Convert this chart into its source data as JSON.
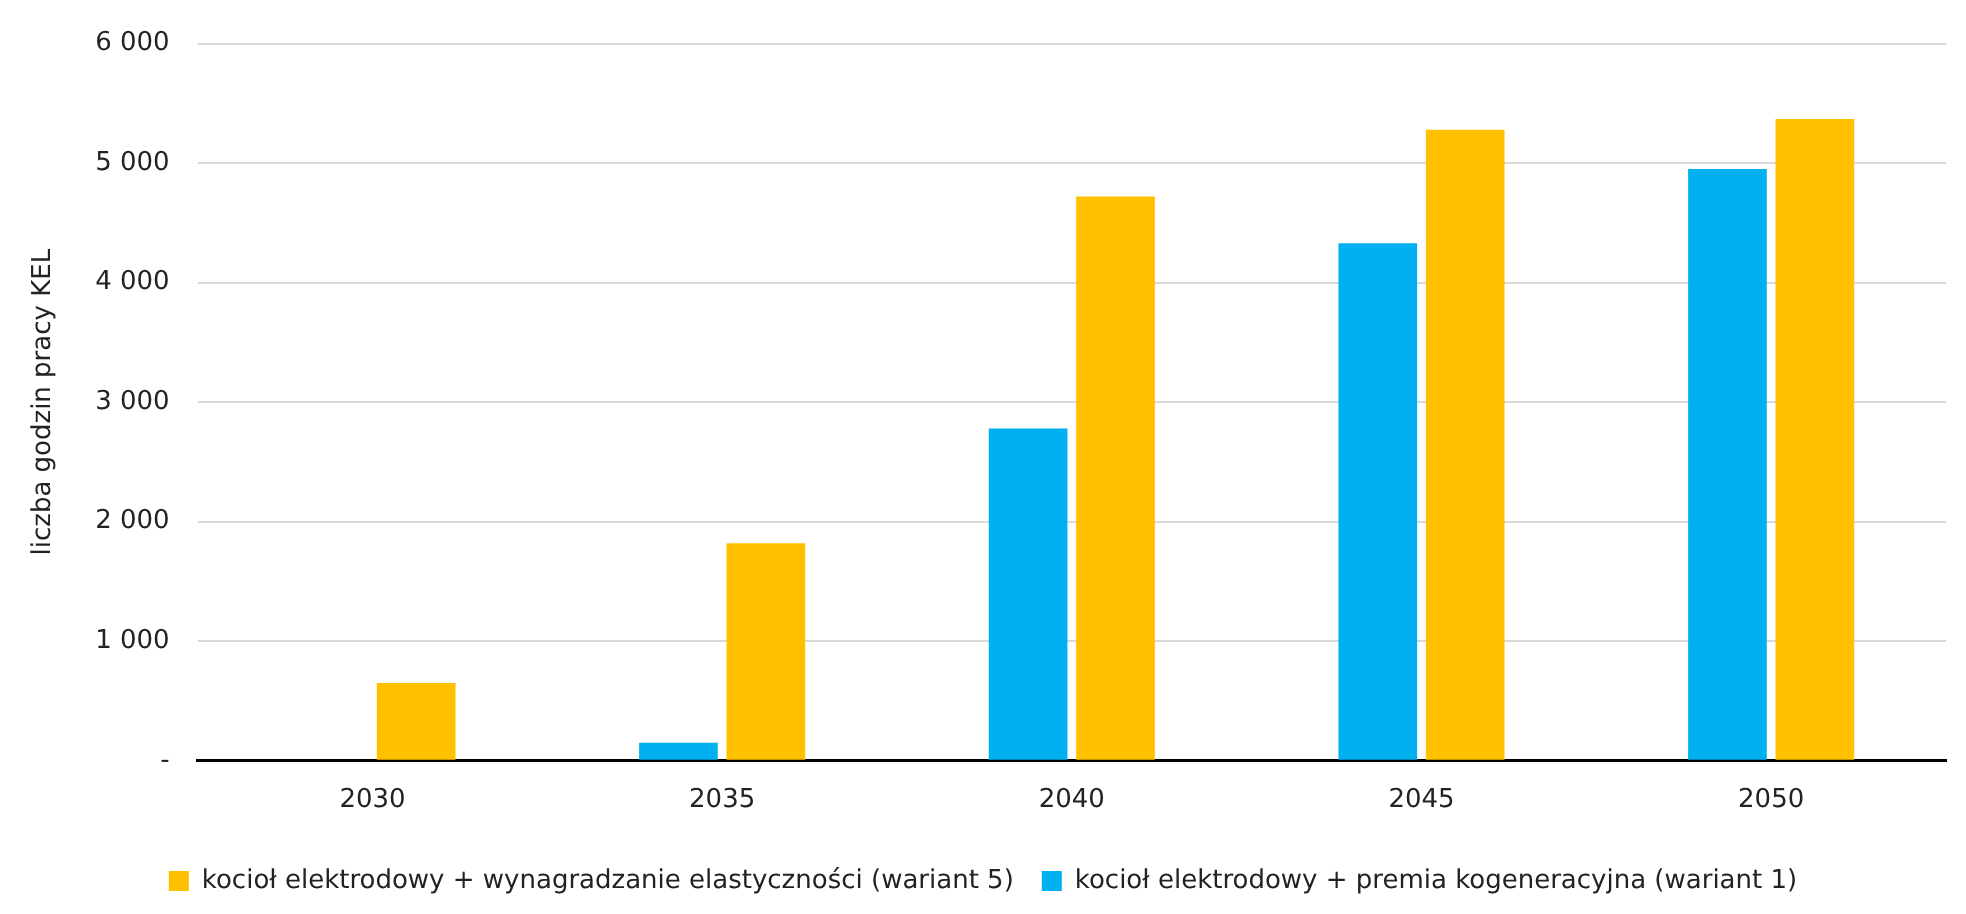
{
  "chart_data": {
    "type": "bar",
    "ylabel": "liczba godzin pracy KEL",
    "categories": [
      "2030",
      "2035",
      "2040",
      "2045",
      "2050"
    ],
    "series": [
      {
        "name": "kocioł elektrodowy + premia kogeneracyjna (wariant 1)",
        "color": "#00b0f0",
        "values": [
          0,
          150,
          2780,
          4330,
          4950
        ]
      },
      {
        "name": "kocioł elektrodowy + wynagradzanie elastyczności (wariant 5)",
        "color": "#ffc000",
        "values": [
          650,
          1820,
          4720,
          5280,
          5370
        ]
      }
    ],
    "ylim": [
      0,
      6000
    ],
    "yticks": [
      {
        "value": 0,
        "label": "-"
      },
      {
        "value": 1000,
        "label": "1 000"
      },
      {
        "value": 2000,
        "label": "2 000"
      },
      {
        "value": 3000,
        "label": "3 000"
      },
      {
        "value": 4000,
        "label": "4 000"
      },
      {
        "value": 5000,
        "label": "5 000"
      },
      {
        "value": 6000,
        "label": "6 000"
      }
    ],
    "grid": "y",
    "legend": "bottom"
  }
}
